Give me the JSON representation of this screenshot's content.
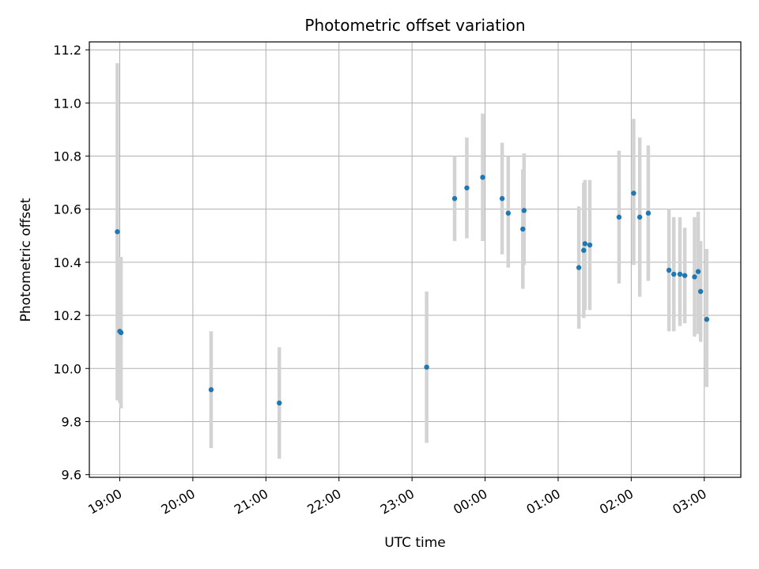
{
  "chart_data": {
    "type": "scatter",
    "title": "Photometric offset variation",
    "xlabel": "UTC time",
    "ylabel": "Photometric offset",
    "grid": true,
    "x_unit": "UTC time (HH:MM)",
    "xlim": [
      "18:35",
      "03:30"
    ],
    "ylim": [
      9.59,
      11.23
    ],
    "x_ticks": [
      "19:00",
      "20:00",
      "21:00",
      "22:00",
      "23:00",
      "00:00",
      "01:00",
      "02:00",
      "03:00"
    ],
    "y_ticks": [
      "9.6",
      "9.8",
      "10.0",
      "10.2",
      "10.4",
      "10.6",
      "10.8",
      "11.0",
      "11.2"
    ],
    "marker_color": "#1f77b4",
    "errorbar_color": "#d3d3d3",
    "points": [
      {
        "x": "18:58",
        "y": 10.515,
        "ylow": 9.88,
        "yhigh": 11.15
      },
      {
        "x": "19:00",
        "y": 10.14,
        "ylow": 9.87,
        "yhigh": 10.41
      },
      {
        "x": "19:01",
        "y": 10.135,
        "ylow": 9.85,
        "yhigh": 10.42
      },
      {
        "x": "20:15",
        "y": 9.92,
        "ylow": 9.7,
        "yhigh": 10.14
      },
      {
        "x": "21:11",
        "y": 9.87,
        "ylow": 9.66,
        "yhigh": 10.08
      },
      {
        "x": "23:12",
        "y": 10.005,
        "ylow": 9.72,
        "yhigh": 10.29
      },
      {
        "x": "23:35",
        "y": 10.64,
        "ylow": 10.48,
        "yhigh": 10.8
      },
      {
        "x": "23:45",
        "y": 10.68,
        "ylow": 10.49,
        "yhigh": 10.87
      },
      {
        "x": "23:58",
        "y": 10.72,
        "ylow": 10.48,
        "yhigh": 10.96
      },
      {
        "x": "00:14",
        "y": 10.64,
        "ylow": 10.43,
        "yhigh": 10.85
      },
      {
        "x": "00:19",
        "y": 10.585,
        "ylow": 10.38,
        "yhigh": 10.8
      },
      {
        "x": "00:31",
        "y": 10.525,
        "ylow": 10.3,
        "yhigh": 10.75
      },
      {
        "x": "00:32",
        "y": 10.595,
        "ylow": 10.39,
        "yhigh": 10.81
      },
      {
        "x": "01:17",
        "y": 10.38,
        "ylow": 10.15,
        "yhigh": 10.61
      },
      {
        "x": "01:21",
        "y": 10.445,
        "ylow": 10.19,
        "yhigh": 10.7
      },
      {
        "x": "01:22",
        "y": 10.47,
        "ylow": 10.22,
        "yhigh": 10.71
      },
      {
        "x": "01:26",
        "y": 10.465,
        "ylow": 10.22,
        "yhigh": 10.71
      },
      {
        "x": "01:50",
        "y": 10.57,
        "ylow": 10.32,
        "yhigh": 10.82
      },
      {
        "x": "02:02",
        "y": 10.66,
        "ylow": 10.39,
        "yhigh": 10.94
      },
      {
        "x": "02:07",
        "y": 10.57,
        "ylow": 10.27,
        "yhigh": 10.87
      },
      {
        "x": "02:14",
        "y": 10.585,
        "ylow": 10.33,
        "yhigh": 10.84
      },
      {
        "x": "02:31",
        "y": 10.37,
        "ylow": 10.14,
        "yhigh": 10.6
      },
      {
        "x": "02:35",
        "y": 10.355,
        "ylow": 10.14,
        "yhigh": 10.57
      },
      {
        "x": "02:40",
        "y": 10.355,
        "ylow": 10.16,
        "yhigh": 10.57
      },
      {
        "x": "02:44",
        "y": 10.35,
        "ylow": 10.17,
        "yhigh": 10.53
      },
      {
        "x": "02:52",
        "y": 10.345,
        "ylow": 10.12,
        "yhigh": 10.57
      },
      {
        "x": "02:55",
        "y": 10.365,
        "ylow": 10.13,
        "yhigh": 10.59
      },
      {
        "x": "02:57",
        "y": 10.29,
        "ylow": 10.1,
        "yhigh": 10.48
      },
      {
        "x": "03:02",
        "y": 10.185,
        "ylow": 9.93,
        "yhigh": 10.45
      }
    ]
  }
}
